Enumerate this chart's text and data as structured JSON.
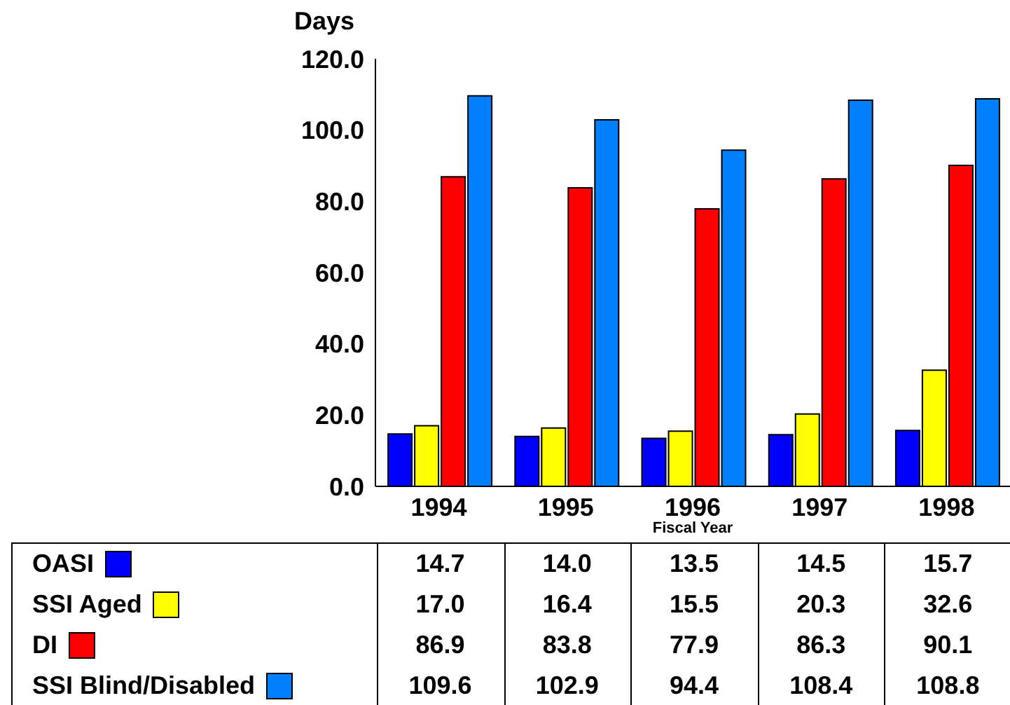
{
  "chart_data": {
    "type": "bar",
    "legend": "bottom left",
    "ylabel": "Days",
    "xlabel": "Fiscal Year",
    "categories": [
      "1994",
      "1995",
      "1996",
      "1997",
      "1998"
    ],
    "series": [
      {
        "name": "OASI",
        "color": "#0000ff",
        "values": [
          14.7,
          14.0,
          13.5,
          14.5,
          15.7
        ],
        "value_labels": [
          "14.7",
          "14.0",
          "13.5",
          "14.5",
          "15.7"
        ]
      },
      {
        "name": "SSI Aged",
        "color": "#ffff00",
        "values": [
          17.0,
          16.4,
          15.5,
          20.3,
          32.6
        ],
        "value_labels": [
          "17.0",
          "16.4",
          "15.5",
          "20.3",
          "32.6"
        ]
      },
      {
        "name": "DI",
        "color": "#ff0000",
        "values": [
          86.9,
          83.8,
          77.9,
          86.3,
          90.1
        ],
        "value_labels": [
          "86.9",
          "83.8",
          "77.9",
          "86.3",
          "90.1"
        ]
      },
      {
        "name": "SSI Blind/Disabled",
        "color": "#0080ff",
        "values": [
          109.6,
          102.9,
          94.4,
          108.4,
          108.8
        ],
        "value_labels": [
          "109.6",
          "102.9",
          "94.4",
          "108.4",
          "108.8"
        ]
      }
    ],
    "ylim": [
      0,
      120
    ],
    "yticks": [
      {
        "value": 0,
        "label": "0.0"
      },
      {
        "value": 20,
        "label": "20.0"
      },
      {
        "value": 40,
        "label": "40.0"
      },
      {
        "value": 60,
        "label": "60.0"
      },
      {
        "value": 80,
        "label": "80.0"
      },
      {
        "value": 100,
        "label": "100.0"
      },
      {
        "value": 120,
        "label": "120.0"
      }
    ]
  }
}
